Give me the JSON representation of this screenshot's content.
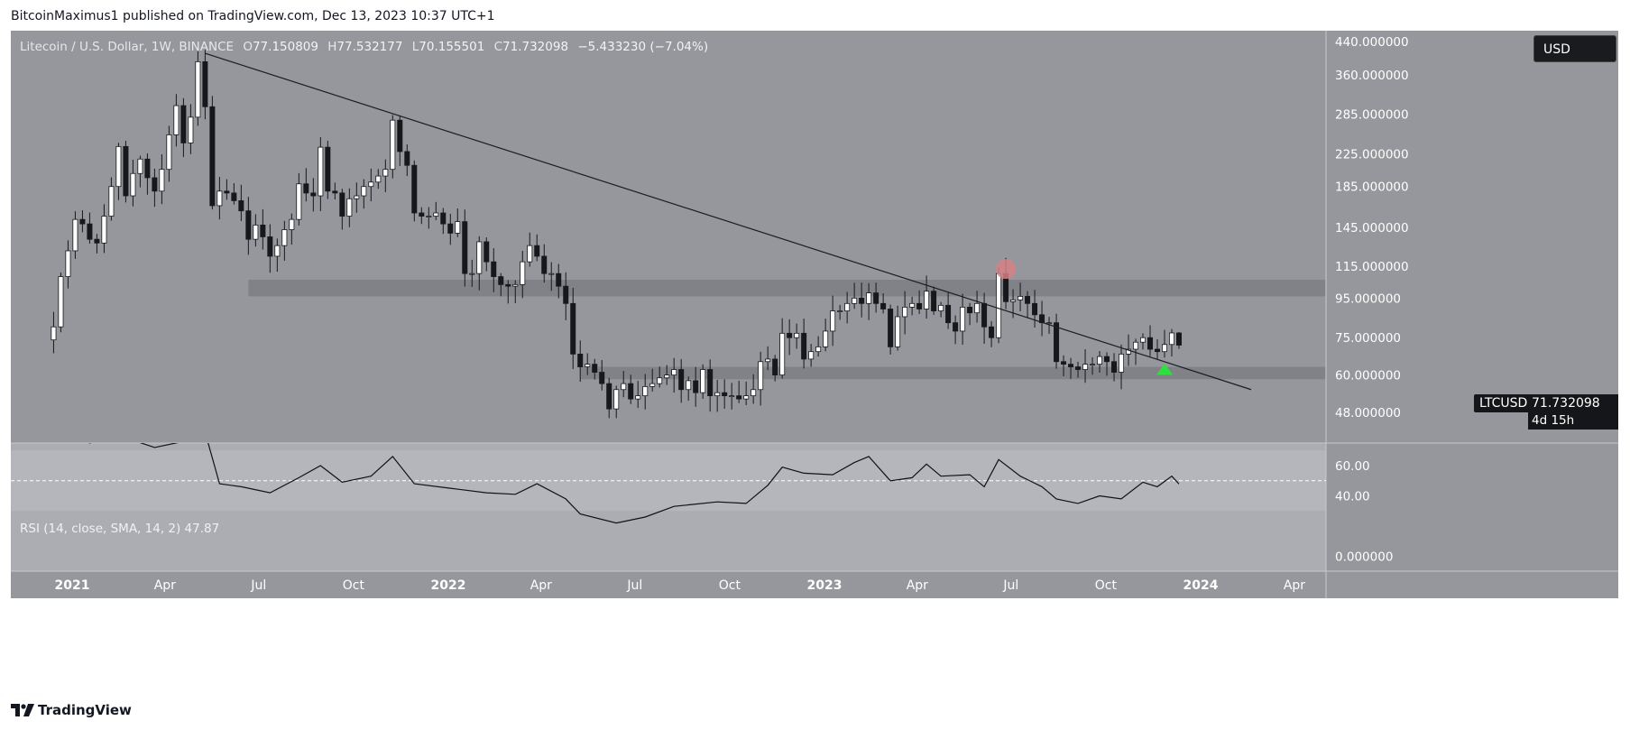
{
  "header": {
    "publisher_line": "BitcoinMaximus1 published on TradingView.com, Dec 13, 2023 10:37 UTC+1"
  },
  "legend": {
    "symbol": "Litecoin / U.S. Dollar, 1W, BINANCE",
    "o_key": "O",
    "o_val": "77.150809",
    "h_key": "H",
    "h_val": "77.532177",
    "l_key": "L",
    "l_val": "70.155501",
    "c_key": "C",
    "c_val": "71.732098",
    "change": "−5.433230 (−7.04%)"
  },
  "rsi_legend": "RSI (14, close, SMA, 14, 2) 47.87",
  "currency_button": "USD",
  "price_tag": {
    "symbol": "LTCUSD",
    "value": "71.732098",
    "countdown": "4d 15h"
  },
  "footer": {
    "brand": "TradingView"
  },
  "colors": {
    "price_bg": "#96979c",
    "rsi_bg": "#abadb3",
    "rsi_band": "#b4b6bc",
    "axis_bg": "#96979c",
    "zone": "#818287",
    "up_candle": "#ffffff",
    "down_candle": "#17181c",
    "trendline": "#1b1c20",
    "highlight_circle": "#d58085",
    "arrow": "#2ee03e"
  },
  "icons": {
    "logo": "tradingview-logo-icon",
    "arrow": "green-up-triangle-icon"
  },
  "chart_data": [
    {
      "type": "candlestick",
      "title": "Litecoin / U.S. Dollar, 1W, BINANCE",
      "scale": "log",
      "y_tick_labels": [
        "440.000000",
        "360.000000",
        "285.000000",
        "225.000000",
        "185.000000",
        "145.000000",
        "115.000000",
        "95.000000",
        "75.000000",
        "60.000000",
        "48.000000"
      ],
      "y_ticks": [
        440,
        360,
        285,
        225,
        185,
        145,
        115,
        95,
        75,
        60,
        48
      ],
      "x_tick_labels": [
        "2021",
        "Apr",
        "Jul",
        "Oct",
        "2022",
        "Apr",
        "Jul",
        "Oct",
        "2023",
        "Apr",
        "Jul",
        "Oct",
        "2024",
        "Apr"
      ],
      "x_tick_dates": [
        "2021-01-01",
        "2021-04-01",
        "2021-07-01",
        "2021-10-01",
        "2022-01-01",
        "2022-04-01",
        "2022-07-01",
        "2022-10-01",
        "2023-01-01",
        "2023-04-01",
        "2023-07-01",
        "2023-10-01",
        "2024-01-01",
        "2024-04-01"
      ],
      "year_ticks": [
        "2021",
        "2022",
        "2023",
        "2024"
      ],
      "closes": [
        [
          2020,
          12,
          14,
          80
        ],
        [
          2020,
          12,
          21,
          108
        ],
        [
          2020,
          12,
          28,
          126
        ],
        [
          2021,
          1,
          4,
          152
        ],
        [
          2021,
          1,
          11,
          148
        ],
        [
          2021,
          1,
          18,
          135
        ],
        [
          2021,
          1,
          25,
          132
        ],
        [
          2021,
          2,
          1,
          155
        ],
        [
          2021,
          2,
          8,
          185
        ],
        [
          2021,
          2,
          15,
          235
        ],
        [
          2021,
          2,
          22,
          175
        ],
        [
          2021,
          3,
          1,
          200
        ],
        [
          2021,
          3,
          8,
          218
        ],
        [
          2021,
          3,
          15,
          195
        ],
        [
          2021,
          3,
          22,
          180
        ],
        [
          2021,
          3,
          29,
          205
        ],
        [
          2021,
          4,
          5,
          252
        ],
        [
          2021,
          4,
          12,
          300
        ],
        [
          2021,
          4,
          19,
          240
        ],
        [
          2021,
          4,
          26,
          280
        ],
        [
          2021,
          5,
          3,
          390
        ],
        [
          2021,
          5,
          10,
          298
        ],
        [
          2021,
          5,
          17,
          165
        ],
        [
          2021,
          5,
          24,
          180
        ],
        [
          2021,
          5,
          31,
          178
        ],
        [
          2021,
          6,
          7,
          170
        ],
        [
          2021,
          6,
          14,
          160
        ],
        [
          2021,
          6,
          21,
          135
        ],
        [
          2021,
          6,
          28,
          147
        ],
        [
          2021,
          7,
          5,
          137
        ],
        [
          2021,
          7,
          12,
          122
        ],
        [
          2021,
          7,
          19,
          130
        ],
        [
          2021,
          7,
          26,
          143
        ],
        [
          2021,
          8,
          2,
          152
        ],
        [
          2021,
          8,
          9,
          188
        ],
        [
          2021,
          8,
          16,
          178
        ],
        [
          2021,
          8,
          23,
          175
        ],
        [
          2021,
          8,
          30,
          234
        ],
        [
          2021,
          9,
          6,
          180
        ],
        [
          2021,
          9,
          13,
          178
        ],
        [
          2021,
          9,
          20,
          155
        ],
        [
          2021,
          9,
          27,
          172
        ],
        [
          2021,
          10,
          4,
          175
        ],
        [
          2021,
          10,
          11,
          185
        ],
        [
          2021,
          10,
          18,
          190
        ],
        [
          2021,
          10,
          25,
          197
        ],
        [
          2021,
          11,
          1,
          205
        ],
        [
          2021,
          11,
          8,
          275
        ],
        [
          2021,
          11,
          15,
          228
        ],
        [
          2021,
          11,
          22,
          210
        ],
        [
          2021,
          11,
          29,
          158
        ],
        [
          2021,
          12,
          6,
          155
        ],
        [
          2021,
          12,
          13,
          155
        ],
        [
          2021,
          12,
          20,
          158
        ],
        [
          2021,
          12,
          27,
          148
        ],
        [
          2022,
          1,
          3,
          140
        ],
        [
          2022,
          1,
          10,
          150
        ],
        [
          2022,
          1,
          17,
          110
        ],
        [
          2022,
          1,
          24,
          110
        ],
        [
          2022,
          1,
          31,
          133
        ],
        [
          2022,
          2,
          7,
          118
        ],
        [
          2022,
          2,
          14,
          108
        ],
        [
          2022,
          2,
          21,
          103
        ],
        [
          2022,
          2,
          28,
          102
        ],
        [
          2022,
          3,
          7,
          103
        ],
        [
          2022,
          3,
          14,
          118
        ],
        [
          2022,
          3,
          21,
          130
        ],
        [
          2022,
          3,
          28,
          122
        ],
        [
          2022,
          4,
          4,
          110
        ],
        [
          2022,
          4,
          11,
          110
        ],
        [
          2022,
          4,
          18,
          102
        ],
        [
          2022,
          4,
          25,
          92
        ],
        [
          2022,
          5,
          2,
          68
        ],
        [
          2022,
          5,
          9,
          63
        ],
        [
          2022,
          5,
          16,
          64
        ],
        [
          2022,
          5,
          23,
          61
        ],
        [
          2022,
          5,
          30,
          57
        ],
        [
          2022,
          6,
          6,
          49
        ],
        [
          2022,
          6,
          13,
          55
        ],
        [
          2022,
          6,
          20,
          57
        ],
        [
          2022,
          6,
          27,
          52
        ],
        [
          2022,
          7,
          4,
          53
        ],
        [
          2022,
          7,
          11,
          56
        ],
        [
          2022,
          7,
          18,
          57
        ],
        [
          2022,
          7,
          25,
          59
        ],
        [
          2022,
          8,
          1,
          60
        ],
        [
          2022,
          8,
          8,
          62
        ],
        [
          2022,
          8,
          15,
          55
        ],
        [
          2022,
          8,
          22,
          58
        ],
        [
          2022,
          8,
          29,
          54
        ],
        [
          2022,
          9,
          5,
          62
        ],
        [
          2022,
          9,
          12,
          53
        ],
        [
          2022,
          9,
          19,
          54
        ],
        [
          2022,
          9,
          26,
          53
        ],
        [
          2022,
          10,
          3,
          53
        ],
        [
          2022,
          10,
          10,
          52
        ],
        [
          2022,
          10,
          17,
          53
        ],
        [
          2022,
          10,
          24,
          55
        ],
        [
          2022,
          10,
          31,
          65
        ],
        [
          2022,
          11,
          7,
          66
        ],
        [
          2022,
          11,
          14,
          60
        ],
        [
          2022,
          11,
          21,
          77
        ],
        [
          2022,
          11,
          28,
          75
        ],
        [
          2022,
          12,
          5,
          77
        ],
        [
          2022,
          12,
          12,
          66
        ],
        [
          2022,
          12,
          19,
          69
        ],
        [
          2022,
          12,
          26,
          71
        ],
        [
          2023,
          1,
          2,
          78
        ],
        [
          2023,
          1,
          9,
          88
        ],
        [
          2023,
          1,
          16,
          88
        ],
        [
          2023,
          1,
          23,
          92
        ],
        [
          2023,
          1,
          30,
          95
        ],
        [
          2023,
          2,
          6,
          92
        ],
        [
          2023,
          2,
          13,
          98
        ],
        [
          2023,
          2,
          20,
          92
        ],
        [
          2023,
          2,
          27,
          89
        ],
        [
          2023,
          3,
          6,
          71
        ],
        [
          2023,
          3,
          13,
          85
        ],
        [
          2023,
          3,
          20,
          90
        ],
        [
          2023,
          3,
          27,
          92
        ],
        [
          2023,
          4,
          3,
          89
        ],
        [
          2023,
          4,
          10,
          99
        ],
        [
          2023,
          4,
          17,
          88
        ],
        [
          2023,
          4,
          24,
          91
        ],
        [
          2023,
          5,
          1,
          82
        ],
        [
          2023,
          5,
          8,
          78
        ],
        [
          2023,
          5,
          15,
          90
        ],
        [
          2023,
          5,
          22,
          87
        ],
        [
          2023,
          5,
          29,
          92
        ],
        [
          2023,
          6,
          5,
          80
        ],
        [
          2023,
          6,
          12,
          75
        ],
        [
          2023,
          6,
          19,
          110
        ],
        [
          2023,
          6,
          26,
          93
        ],
        [
          2023,
          7,
          3,
          94
        ],
        [
          2023,
          7,
          10,
          96
        ],
        [
          2023,
          7,
          17,
          92
        ],
        [
          2023,
          7,
          24,
          86
        ],
        [
          2023,
          7,
          31,
          82
        ],
        [
          2023,
          8,
          7,
          82
        ],
        [
          2023,
          8,
          14,
          65
        ],
        [
          2023,
          8,
          21,
          64
        ],
        [
          2023,
          8,
          28,
          63
        ],
        [
          2023,
          9,
          4,
          62
        ],
        [
          2023,
          9,
          11,
          64
        ],
        [
          2023,
          9,
          18,
          64
        ],
        [
          2023,
          9,
          25,
          67
        ],
        [
          2023,
          10,
          2,
          65
        ],
        [
          2023,
          10,
          9,
          61
        ],
        [
          2023,
          10,
          16,
          68
        ],
        [
          2023,
          10,
          23,
          70
        ],
        [
          2023,
          10,
          30,
          73
        ],
        [
          2023,
          11,
          6,
          75
        ],
        [
          2023,
          11,
          13,
          70
        ],
        [
          2023,
          11,
          20,
          69
        ],
        [
          2023,
          11,
          27,
          72
        ],
        [
          2023,
          12,
          4,
          77.15
        ],
        [
          2023,
          12,
          11,
          71.73
        ]
      ],
      "last": {
        "open": 77.150809,
        "high": 77.532177,
        "low": 70.155501,
        "close": 71.732098
      },
      "descending_trendline": {
        "from": [
          "2021-05-10",
          410
        ],
        "to": [
          "2024-02-19",
          55
        ]
      },
      "zones": [
        {
          "from": "2021-06-21",
          "to": "2024-05-01",
          "low": 96,
          "high": 106
        },
        {
          "from": "2022-05-09",
          "to": "2024-05-01",
          "low": 58.5,
          "high": 63
        }
      ],
      "highlight_circle": {
        "date": "2023-06-26",
        "value": 113
      },
      "arrow_marker": {
        "date": "2023-11-27",
        "value": 62
      }
    },
    {
      "type": "line",
      "title": "RSI (14, close, SMA, 14, 2) 47.87",
      "y_tick_labels": [
        "60.00",
        "40.00",
        "0.000000"
      ],
      "y_ticks": [
        60,
        40,
        0
      ],
      "band": [
        30,
        70
      ],
      "midline": 50,
      "last_value": 47.87,
      "values": [
        [
          2020,
          12,
          14,
          80
        ],
        [
          2020,
          12,
          28,
          82
        ],
        [
          2021,
          1,
          18,
          75
        ],
        [
          2021,
          2,
          15,
          80
        ],
        [
          2021,
          3,
          22,
          72
        ],
        [
          2021,
          4,
          19,
          76
        ],
        [
          2021,
          5,
          10,
          82
        ],
        [
          2021,
          5,
          24,
          48
        ],
        [
          2021,
          6,
          14,
          46
        ],
        [
          2021,
          7,
          12,
          42
        ],
        [
          2021,
          8,
          9,
          52
        ],
        [
          2021,
          8,
          30,
          60
        ],
        [
          2021,
          9,
          20,
          49
        ],
        [
          2021,
          10,
          18,
          53
        ],
        [
          2021,
          11,
          8,
          66
        ],
        [
          2021,
          11,
          29,
          48
        ],
        [
          2022,
          1,
          3,
          45
        ],
        [
          2022,
          2,
          7,
          42
        ],
        [
          2022,
          3,
          7,
          41
        ],
        [
          2022,
          3,
          28,
          48
        ],
        [
          2022,
          4,
          25,
          38
        ],
        [
          2022,
          5,
          9,
          28
        ],
        [
          2022,
          6,
          13,
          22
        ],
        [
          2022,
          7,
          11,
          26
        ],
        [
          2022,
          8,
          8,
          33
        ],
        [
          2022,
          9,
          19,
          36
        ],
        [
          2022,
          10,
          17,
          35
        ],
        [
          2022,
          11,
          7,
          47
        ],
        [
          2022,
          11,
          21,
          59
        ],
        [
          2022,
          12,
          12,
          55
        ],
        [
          2023,
          1,
          9,
          54
        ],
        [
          2023,
          1,
          30,
          62
        ],
        [
          2023,
          2,
          13,
          66
        ],
        [
          2023,
          3,
          6,
          50
        ],
        [
          2023,
          3,
          27,
          52
        ],
        [
          2023,
          4,
          10,
          61
        ],
        [
          2023,
          4,
          24,
          53
        ],
        [
          2023,
          5,
          22,
          54
        ],
        [
          2023,
          6,
          5,
          46
        ],
        [
          2023,
          6,
          19,
          64
        ],
        [
          2023,
          7,
          10,
          53
        ],
        [
          2023,
          7,
          31,
          46
        ],
        [
          2023,
          8,
          14,
          38
        ],
        [
          2023,
          9,
          4,
          35
        ],
        [
          2023,
          9,
          25,
          40
        ],
        [
          2023,
          10,
          16,
          38
        ],
        [
          2023,
          11,
          6,
          49
        ],
        [
          2023,
          11,
          20,
          46
        ],
        [
          2023,
          12,
          4,
          53
        ],
        [
          2023,
          12,
          11,
          47.87
        ]
      ]
    }
  ]
}
